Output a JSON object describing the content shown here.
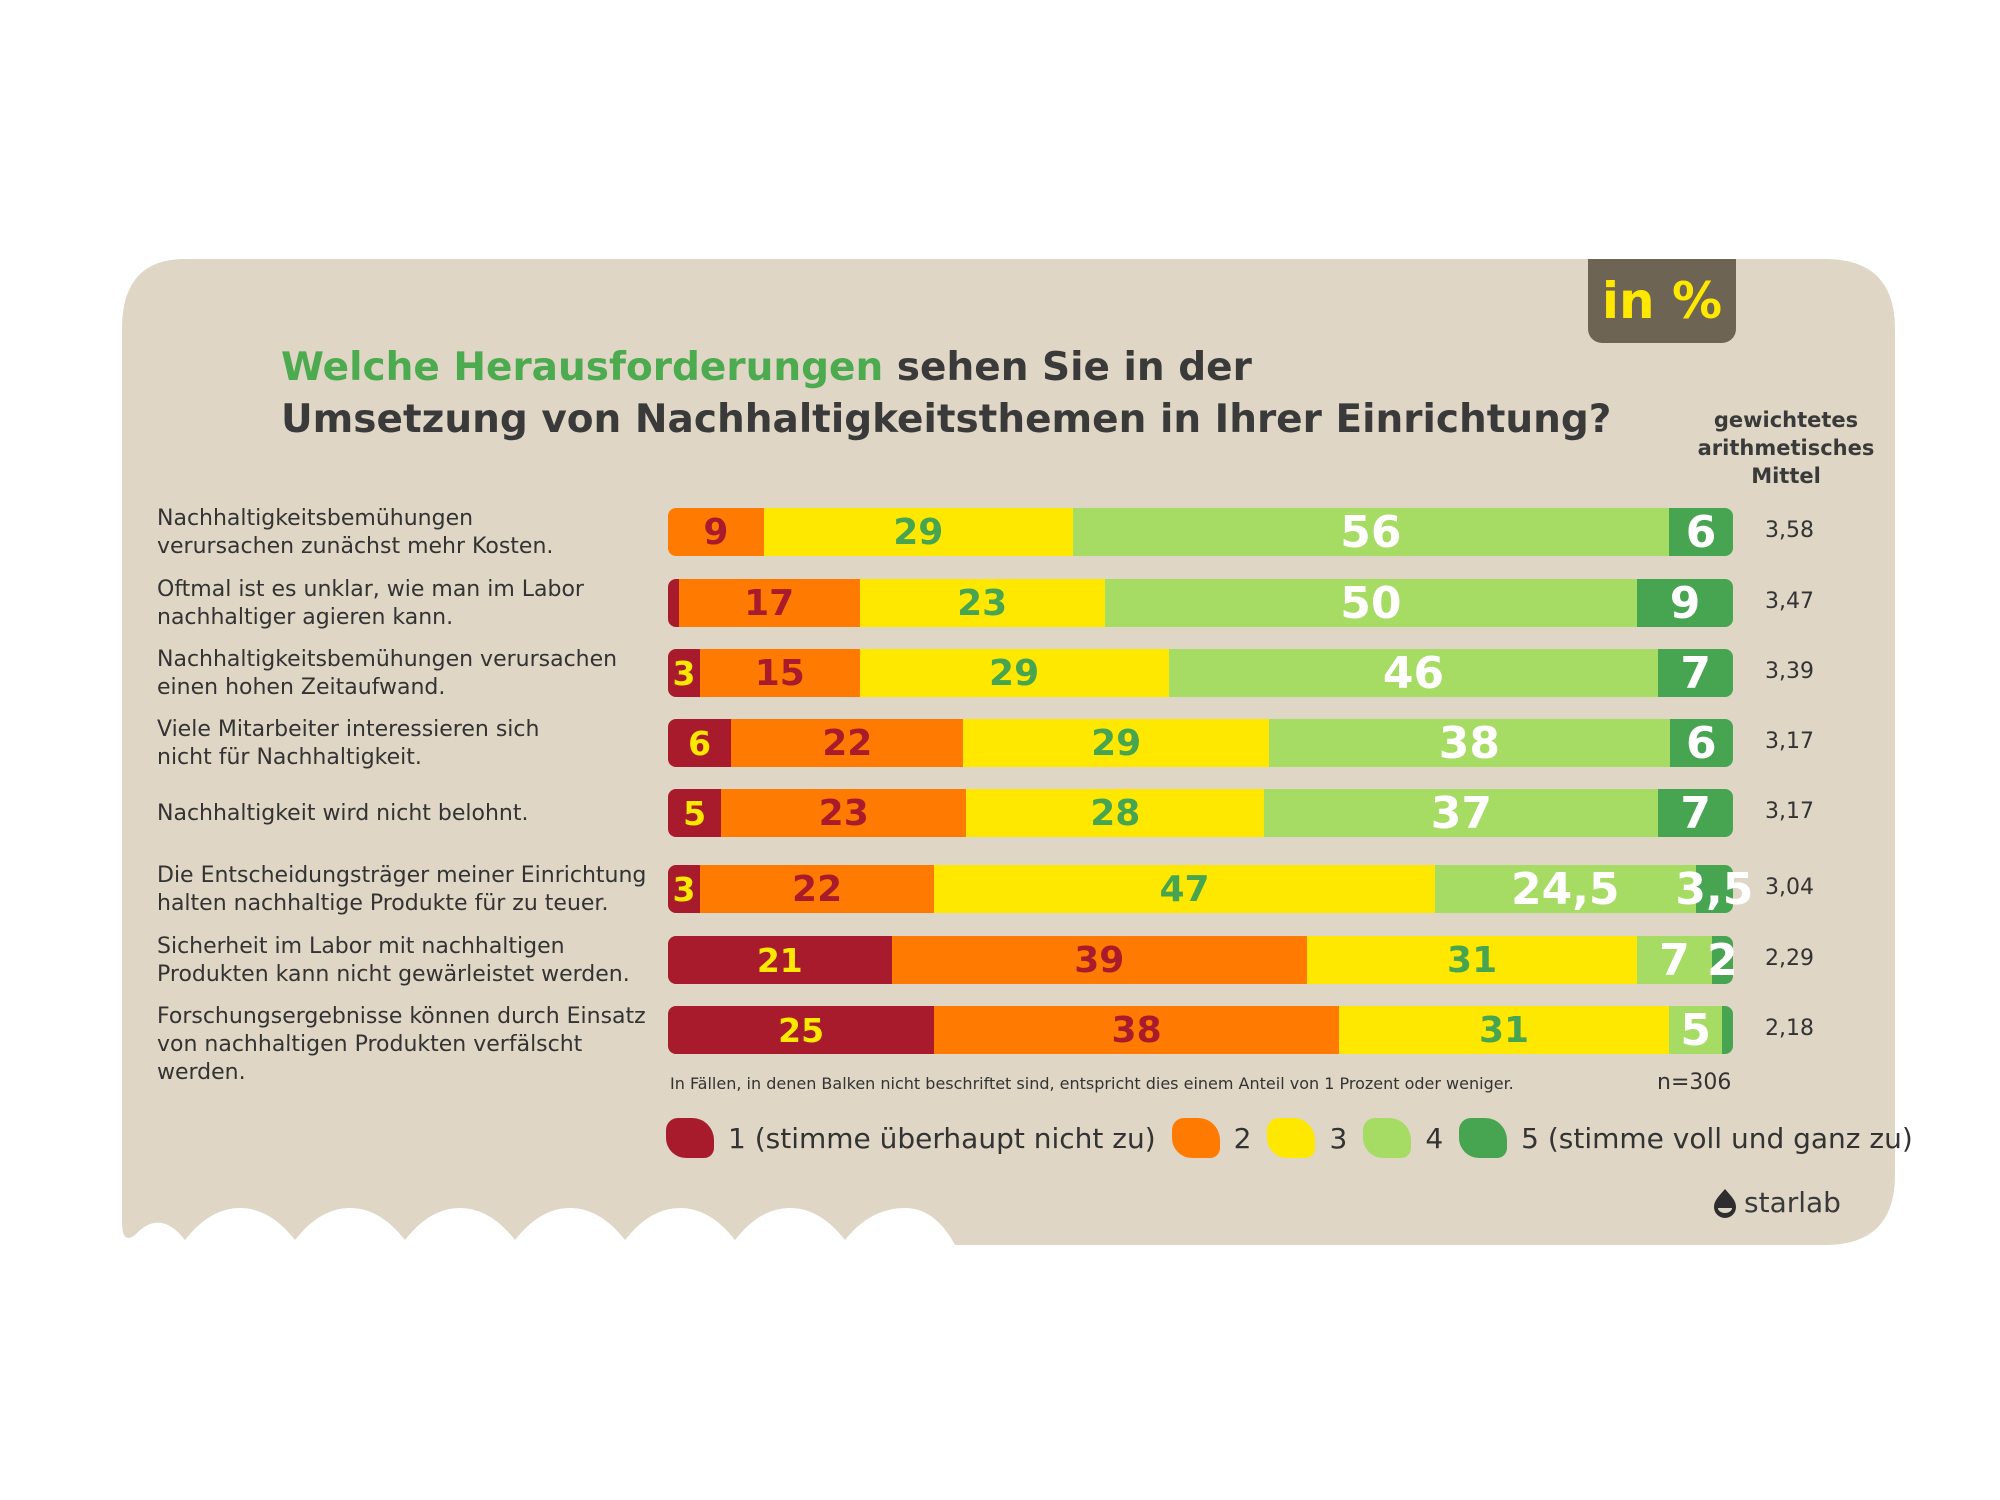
{
  "badge": "in %",
  "title": {
    "highlight": "Welche Herausforderungen",
    "line1_rest": " sehen Sie in der",
    "line2": "Umsetzung von Nachhaltigkeitsthemen in Ihrer Einrichtung?"
  },
  "mean_header": "gewichtetes arithmetisches Mittel",
  "colors": {
    "panel": "#dfd6c5",
    "c1": "#a81b2c",
    "c2": "#ff7a00",
    "c3": "#ffe800",
    "c4": "#a6dc64",
    "c5": "#47a552"
  },
  "chart_data": {
    "type": "bar",
    "stacked": true,
    "orientation": "horizontal",
    "unit": "in %",
    "xlim": [
      0,
      100
    ],
    "series_names": [
      "1 (stimme überhaupt nicht zu)",
      "2",
      "3",
      "4",
      "5 (stimme voll und ganz zu)"
    ],
    "rows": [
      {
        "label": "Nachhaltigkeitsbemühungen verursachen zunächst mehr Kosten.",
        "label_lines": [
          "Nachhaltigkeitsbemühungen",
          "verursachen zunächst mehr Kosten."
        ],
        "values": [
          0,
          9,
          29,
          56,
          6
        ],
        "labels": [
          "",
          "9",
          "29",
          "56",
          "6"
        ],
        "mean": "3,58"
      },
      {
        "label": "Oftmal ist es unklar, wie man im Labor nachhaltiger agieren kann.",
        "label_lines": [
          "Oftmal ist es unklar, wie man im Labor",
          "nachhaltiger agieren kann."
        ],
        "values": [
          1,
          17,
          23,
          50,
          9
        ],
        "labels": [
          "",
          "17",
          "23",
          "50",
          "9"
        ],
        "mean": "3,47"
      },
      {
        "label": "Nachhaltigkeitsbemühungen verursachen einen hohen Zeitaufwand.",
        "label_lines": [
          "Nachhaltigkeitsbemühungen verursachen",
          "einen hohen Zeitaufwand."
        ],
        "values": [
          3,
          15,
          29,
          46,
          7
        ],
        "labels": [
          "3",
          "15",
          "29",
          "46",
          "7"
        ],
        "mean": "3,39"
      },
      {
        "label": "Viele Mitarbeiter interessieren sich nicht für Nachhaltigkeit.",
        "label_lines": [
          "Viele Mitarbeiter interessieren sich",
          "nicht für Nachhaltigkeit."
        ],
        "values": [
          6,
          22,
          29,
          38,
          6
        ],
        "labels": [
          "6",
          "22",
          "29",
          "38",
          "6"
        ],
        "mean": "3,17"
      },
      {
        "label": "Nachhaltigkeit wird nicht belohnt.",
        "label_lines": [
          "Nachhaltigkeit wird nicht belohnt."
        ],
        "values": [
          5,
          23,
          28,
          37,
          7
        ],
        "labels": [
          "5",
          "23",
          "28",
          "37",
          "7"
        ],
        "mean": "3,17"
      },
      {
        "label": "Die Entscheidungsträger meiner Einrichtung halten nachhaltige Produkte für zu teuer.",
        "label_lines": [
          "Die Entscheidungsträger meiner Einrichtung",
          "halten nachhaltige Produkte für zu teuer."
        ],
        "values": [
          3,
          22,
          47,
          24.5,
          3.5
        ],
        "labels": [
          "3",
          "22",
          "47",
          "24,5",
          "3,5"
        ],
        "mean": "3,04"
      },
      {
        "label": "Sicherheit im Labor mit nachhaltigen Produkten kann nicht gewärleistet werden.",
        "label_lines": [
          "Sicherheit im Labor mit nachhaltigen",
          "Produkten kann nicht gewärleistet werden."
        ],
        "values": [
          21,
          39,
          31,
          7,
          2
        ],
        "labels": [
          "21",
          "39",
          "31",
          "7",
          "2"
        ],
        "mean": "2,29"
      },
      {
        "label": "Forschungsergebnisse können durch Einsatz von nachhaltigen Produkten verfälscht werden.",
        "label_lines": [
          "Forschungsergebnisse können durch Einsatz",
          "von nachhaltigen Produkten verfälscht werden."
        ],
        "values": [
          25,
          38,
          31,
          5,
          1
        ],
        "labels": [
          "25",
          "38",
          "31",
          "5",
          ""
        ],
        "mean": "2,18"
      }
    ]
  },
  "note": "In Fällen, in denen Balken nicht beschriftet sind, entspricht dies einem Anteil von 1 Prozent oder weniger.",
  "n": "n=306",
  "legend": [
    {
      "label": "1 (stimme überhaupt nicht zu)",
      "color": "#a81b2c"
    },
    {
      "label": "2",
      "color": "#ff7a00"
    },
    {
      "label": "3",
      "color": "#ffe800"
    },
    {
      "label": "4",
      "color": "#a6dc64"
    },
    {
      "label": "5 (stimme voll und ganz zu)",
      "color": "#47a552"
    }
  ],
  "logo": {
    "text": "starlab"
  }
}
